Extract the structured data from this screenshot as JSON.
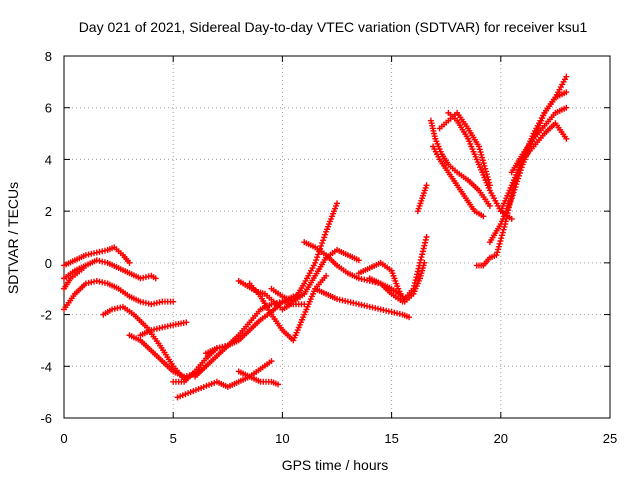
{
  "chart_data": {
    "type": "scatter",
    "title": "Day 021 of 2021, Sidereal Day-to-day VTEC variation (SDTVAR) for receiver ksu1",
    "xlabel": "GPS time / hours",
    "ylabel": "SDTVAR / TECUs",
    "xlim": [
      0,
      25
    ],
    "ylim": [
      -6,
      8
    ],
    "xticks": [
      "0",
      "5",
      "10",
      "15",
      "20",
      "25"
    ],
    "yticks": [
      "-6",
      "-4",
      "-2",
      "0",
      "2",
      "4",
      "6",
      "8"
    ],
    "grid": true,
    "marker": "plus",
    "color": "#ff0000",
    "series": [
      {
        "x": [
          0,
          0.5,
          1,
          1.5,
          2,
          2.3,
          2.7,
          3
        ],
        "y": [
          -0.1,
          0.1,
          0.3,
          0.4,
          0.5,
          0.6,
          0.3,
          0.0
        ]
      },
      {
        "x": [
          0,
          0.5,
          1,
          1.5,
          2,
          2.5,
          3,
          3.5,
          4,
          4.2
        ],
        "y": [
          -0.6,
          -0.3,
          -0.1,
          0.1,
          0.0,
          -0.2,
          -0.4,
          -0.6,
          -0.5,
          -0.6
        ]
      },
      {
        "x": [
          0,
          0.5,
          1,
          1.5,
          2,
          2.5,
          3,
          3.5,
          4,
          4.5,
          5
        ],
        "y": [
          -1.8,
          -1.2,
          -0.8,
          -0.7,
          -0.8,
          -1.0,
          -1.3,
          -1.5,
          -1.6,
          -1.5,
          -1.5
        ]
      },
      {
        "x": [
          0,
          0.3,
          0.6,
          0.9
        ],
        "y": [
          -1.0,
          -0.6,
          -0.4,
          -0.2
        ]
      },
      {
        "x": [
          1.8,
          2.2,
          2.7,
          3.2,
          3.8,
          4.4,
          5.0,
          5.5
        ],
        "y": [
          -2.0,
          -1.8,
          -1.7,
          -2.0,
          -2.5,
          -3.2,
          -4.0,
          -4.5
        ]
      },
      {
        "x": [
          3.0,
          3.5,
          4.0,
          4.5,
          5.0,
          5.5,
          6.0,
          6.5
        ],
        "y": [
          -2.8,
          -3.0,
          -3.4,
          -3.8,
          -4.2,
          -4.4,
          -4.3,
          -4.0
        ]
      },
      {
        "x": [
          3.5,
          4.0,
          4.5,
          5.0,
          5.6
        ],
        "y": [
          -2.8,
          -2.6,
          -2.5,
          -2.4,
          -2.3
        ]
      },
      {
        "x": [
          5.0,
          5.5,
          6.0,
          6.5,
          7.0,
          7.5
        ],
        "y": [
          -4.6,
          -4.6,
          -4.2,
          -3.7,
          -3.3,
          -3.2
        ]
      },
      {
        "x": [
          5.2,
          5.8,
          6.4,
          7.0,
          7.5,
          8.0,
          8.5,
          9.0,
          9.5
        ],
        "y": [
          -5.2,
          -5.0,
          -4.8,
          -4.6,
          -4.8,
          -4.6,
          -4.4,
          -4.1,
          -3.8
        ]
      },
      {
        "x": [
          6.0,
          6.5,
          7.0,
          7.5,
          8.0,
          8.5,
          9.0,
          9.5,
          10.0,
          10.5,
          11.0
        ],
        "y": [
          -4.4,
          -4.0,
          -3.6,
          -3.2,
          -2.8,
          -2.3,
          -1.8,
          -1.6,
          -1.5,
          -1.6,
          -1.6
        ]
      },
      {
        "x": [
          6.5,
          7.0,
          7.5,
          8.0,
          8.5,
          9.0,
          9.5,
          10.0,
          10.5,
          11.0
        ],
        "y": [
          -3.5,
          -3.3,
          -3.2,
          -3.0,
          -2.6,
          -2.2,
          -1.9,
          -1.5,
          -1.3,
          -1.2
        ]
      },
      {
        "x": [
          8.0,
          8.4,
          8.8,
          9.2,
          9.6,
          10.0,
          10.4
        ],
        "y": [
          -0.7,
          -0.9,
          -1.1,
          -1.2,
          -1.5,
          -1.8,
          -1.6
        ]
      },
      {
        "x": [
          8.5,
          9.0,
          9.5,
          10.0,
          10.5,
          11.0,
          11.5,
          12.0
        ],
        "y": [
          -0.8,
          -1.3,
          -2.0,
          -2.6,
          -3.0,
          -2.0,
          -1.0,
          -0.5
        ]
      },
      {
        "x": [
          8.0,
          8.5,
          9.0,
          9.5,
          9.8
        ],
        "y": [
          -4.2,
          -4.4,
          -4.6,
          -4.6,
          -4.7
        ]
      },
      {
        "x": [
          9.5,
          10.0,
          10.5,
          11.0,
          11.5,
          12.0,
          12.5,
          13.0,
          13.5
        ],
        "y": [
          -1.0,
          -1.3,
          -1.5,
          -1.2,
          -0.5,
          0.2,
          0.5,
          0.3,
          0.1
        ]
      },
      {
        "x": [
          10.5,
          11.0,
          11.5,
          12.0,
          12.5
        ],
        "y": [
          -1.5,
          -0.8,
          0.0,
          1.2,
          2.3
        ]
      },
      {
        "x": [
          11.0,
          11.5,
          12.0,
          12.5,
          13.0,
          13.5,
          14.0,
          14.5,
          15.0,
          15.5
        ],
        "y": [
          0.8,
          0.6,
          0.3,
          -0.1,
          -0.4,
          -0.6,
          -0.7,
          -0.8,
          -1.0,
          -1.3
        ]
      },
      {
        "x": [
          11.5,
          12.0,
          12.5,
          13.0,
          13.5,
          14.0,
          14.5,
          15.0,
          15.5,
          15.8
        ],
        "y": [
          -1.0,
          -1.2,
          -1.4,
          -1.5,
          -1.6,
          -1.7,
          -1.8,
          -1.9,
          -2.0,
          -2.1
        ]
      },
      {
        "x": [
          13.5,
          14.0,
          14.5,
          15.0,
          15.3,
          15.6,
          16.0,
          16.3,
          16.5
        ],
        "y": [
          -0.4,
          -0.2,
          0.0,
          -0.3,
          -1.0,
          -1.5,
          -1.2,
          -0.6,
          0.0
        ]
      },
      {
        "x": [
          14.0,
          14.5,
          15.0,
          15.5,
          16.0,
          16.3,
          16.6
        ],
        "y": [
          -0.6,
          -0.8,
          -1.2,
          -1.5,
          -1.0,
          0.0,
          1.0
        ]
      },
      {
        "x": [
          16.2,
          16.4,
          16.6
        ],
        "y": [
          2.0,
          2.5,
          3.0
        ]
      },
      {
        "x": [
          16.8,
          17.0,
          17.3,
          17.6,
          18.0,
          18.5,
          19.0,
          19.5
        ],
        "y": [
          5.5,
          4.8,
          4.2,
          3.8,
          3.5,
          3.2,
          2.8,
          2.2
        ]
      },
      {
        "x": [
          16.9,
          17.2,
          17.6,
          18.0,
          18.4,
          18.8,
          19.2
        ],
        "y": [
          4.5,
          4.0,
          3.5,
          3.0,
          2.5,
          2.0,
          1.8
        ]
      },
      {
        "x": [
          17.2,
          17.6,
          18.0,
          18.5,
          19.0,
          19.5
        ],
        "y": [
          5.2,
          5.5,
          5.8,
          5.2,
          4.5,
          3.0
        ]
      },
      {
        "x": [
          17.6,
          18.0,
          18.5,
          19.0,
          19.5,
          20.0,
          20.5
        ],
        "y": [
          5.8,
          5.5,
          4.8,
          3.8,
          2.8,
          2.0,
          1.7
        ]
      },
      {
        "x": [
          18.9,
          19.2,
          19.5,
          19.8,
          20.2,
          20.6,
          21.0
        ],
        "y": [
          -0.1,
          -0.1,
          0.2,
          0.3,
          1.5,
          3.0,
          4.0
        ]
      },
      {
        "x": [
          19.5,
          20.0,
          20.5,
          21.0,
          21.5,
          22.0,
          22.5,
          23.0
        ],
        "y": [
          0.8,
          1.5,
          2.5,
          3.8,
          4.8,
          5.8,
          6.4,
          7.2
        ]
      },
      {
        "x": [
          20.0,
          20.5,
          21.0,
          21.5,
          22.0,
          22.5,
          23.0
        ],
        "y": [
          2.0,
          3.0,
          4.0,
          5.0,
          5.8,
          6.4,
          6.6
        ]
      },
      {
        "x": [
          20.5,
          21.0,
          21.5,
          22.0,
          22.5,
          23.0
        ],
        "y": [
          3.5,
          4.2,
          4.8,
          5.3,
          5.8,
          6.0
        ]
      },
      {
        "x": [
          21.0,
          21.5,
          22.0,
          22.5,
          23.0
        ],
        "y": [
          4.0,
          4.5,
          5.0,
          5.4,
          4.8
        ]
      }
    ]
  }
}
